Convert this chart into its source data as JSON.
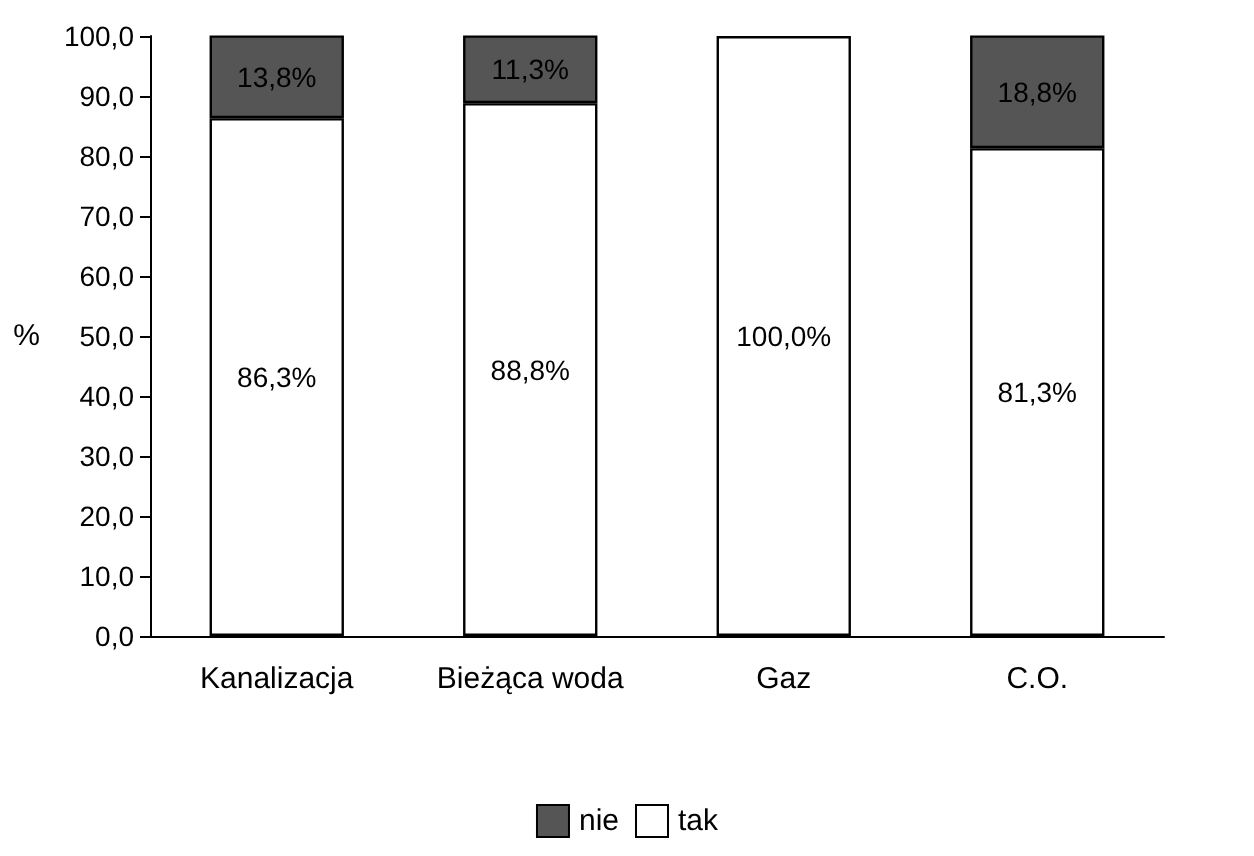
{
  "chart_data": {
    "type": "bar",
    "stacked": true,
    "ylabel": "%",
    "categories": [
      "Kanalizacja",
      "Bieżąca woda",
      "Gaz",
      "C.O."
    ],
    "series": [
      {
        "name": "tak",
        "color": "#ffffff",
        "values": [
          86.3,
          88.8,
          100.0,
          81.3
        ],
        "value_labels": [
          "86,3%",
          "88,8%",
          "100,0%",
          "81,3%"
        ]
      },
      {
        "name": "nie",
        "color": "#555555",
        "values": [
          13.8,
          11.3,
          null,
          18.8
        ],
        "value_labels": [
          "13,8%",
          "11,3%",
          null,
          "18,8%"
        ]
      }
    ],
    "ylim": [
      0,
      100
    ],
    "yticks": [
      {
        "value": 0,
        "label": "0,0"
      },
      {
        "value": 10,
        "label": "10,0"
      },
      {
        "value": 20,
        "label": "20,0"
      },
      {
        "value": 30,
        "label": "30,0"
      },
      {
        "value": 40,
        "label": "40,0"
      },
      {
        "value": 50,
        "label": "50,0"
      },
      {
        "value": 60,
        "label": "60,0"
      },
      {
        "value": 70,
        "label": "70,0"
      },
      {
        "value": 80,
        "label": "80,0"
      },
      {
        "value": 90,
        "label": "90,0"
      },
      {
        "value": 100,
        "label": "100,0"
      }
    ],
    "grid": false,
    "legend": "bottom"
  }
}
